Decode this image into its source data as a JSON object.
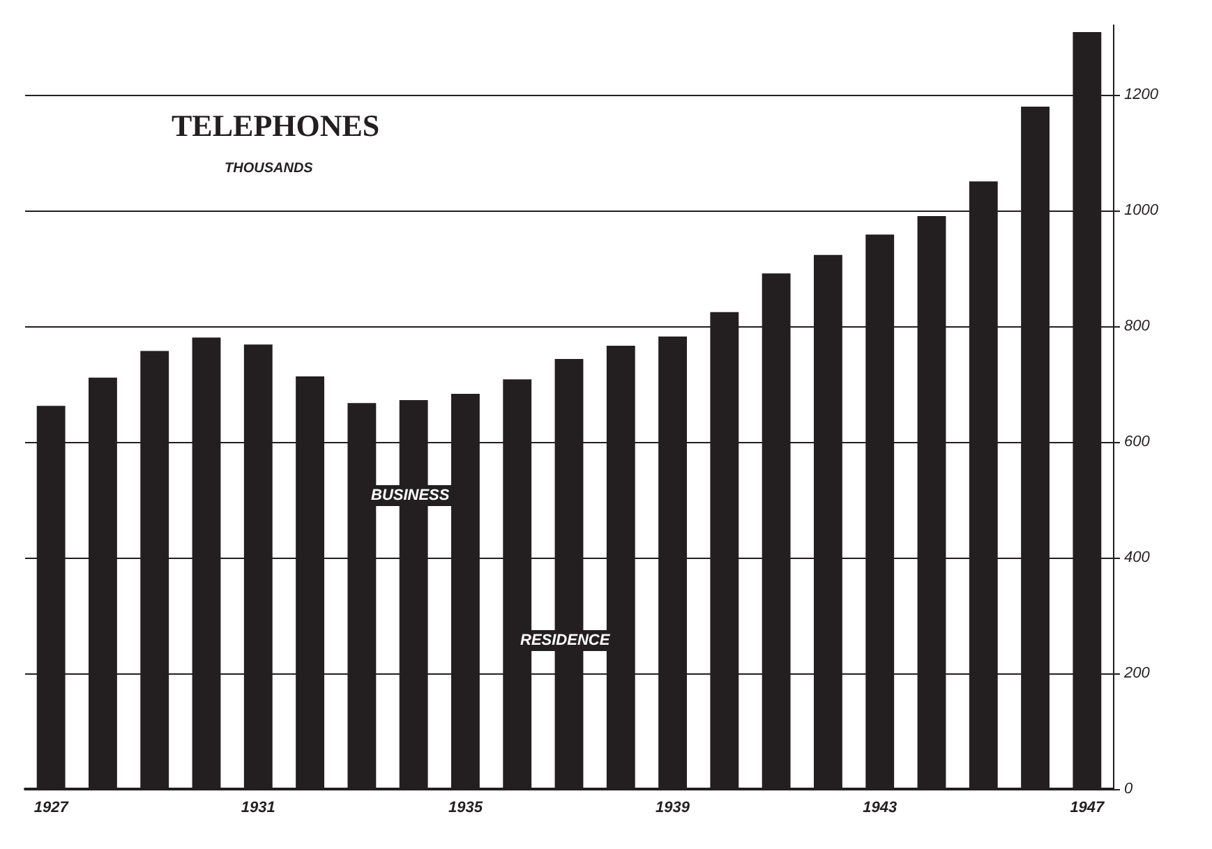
{
  "chart_data": {
    "type": "bar",
    "title": "TELEPHONES",
    "subtitle": "THOUSANDS",
    "categories": [
      "1927",
      null,
      null,
      null,
      "1931",
      null,
      null,
      null,
      "1935",
      null,
      null,
      null,
      "1939",
      null,
      null,
      null,
      "1943",
      null,
      null,
      null,
      "1947"
    ],
    "values": [
      662,
      711,
      757,
      780,
      768,
      713,
      667,
      672,
      683,
      708,
      743,
      766,
      782,
      824,
      891,
      923,
      958,
      990,
      1050,
      1179,
      1308
    ],
    "color": "#231f20",
    "ylim": [
      0,
      1320
    ],
    "yticks": [
      0,
      200,
      400,
      600,
      800,
      1000,
      1200
    ],
    "grid": "y",
    "annotations": [
      "BUSINESS",
      "RESIDENCE"
    ]
  }
}
